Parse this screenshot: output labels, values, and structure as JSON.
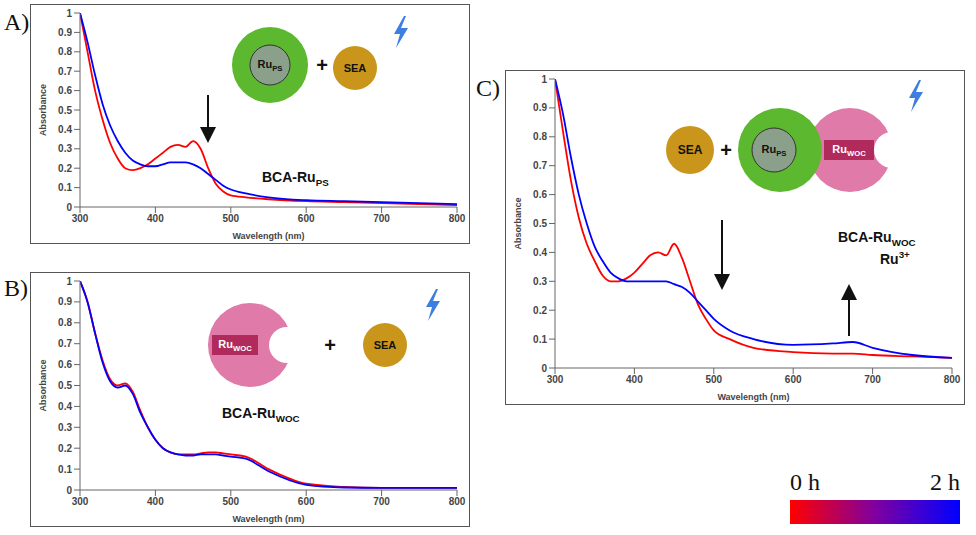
{
  "chart_data": [
    {
      "type": "line",
      "label": "A)",
      "x_label": "Wavelength (nm)",
      "y_label": "Absorbance",
      "xlim": [
        300,
        800
      ],
      "xticks": [
        300,
        400,
        500,
        600,
        700,
        800
      ],
      "ylim": [
        0,
        1
      ],
      "yticks": [
        0,
        0.1,
        0.2,
        0.3,
        0.4,
        0.5,
        0.6,
        0.7,
        0.8,
        0.9,
        1
      ],
      "x": [
        300,
        310,
        320,
        330,
        340,
        350,
        360,
        370,
        380,
        390,
        400,
        410,
        420,
        430,
        440,
        450,
        460,
        470,
        480,
        490,
        500,
        520,
        550,
        600,
        650,
        700,
        750,
        800
      ],
      "series": [
        {
          "name": "0 h",
          "color": "#ff0000",
          "values": [
            1.0,
            0.8,
            0.6,
            0.45,
            0.33,
            0.25,
            0.2,
            0.19,
            0.2,
            0.22,
            0.25,
            0.28,
            0.31,
            0.32,
            0.31,
            0.34,
            0.3,
            0.2,
            0.12,
            0.08,
            0.06,
            0.05,
            0.04,
            0.03,
            0.025,
            0.02,
            0.015,
            0.01
          ]
        },
        {
          "name": "2 h",
          "color": "#0000ff",
          "values": [
            1.0,
            0.85,
            0.68,
            0.53,
            0.42,
            0.34,
            0.28,
            0.24,
            0.22,
            0.21,
            0.21,
            0.22,
            0.23,
            0.23,
            0.23,
            0.22,
            0.2,
            0.17,
            0.14,
            0.11,
            0.09,
            0.07,
            0.05,
            0.035,
            0.03,
            0.025,
            0.02,
            0.015
          ]
        }
      ],
      "annotations": {
        "ps": {
          "text": "Ru",
          "sub": "PS"
        },
        "plus": {
          "text": "+"
        },
        "sea": {
          "text": "SEA"
        },
        "complex": {
          "text": "BCA-Ru",
          "sub": "PS"
        }
      }
    },
    {
      "type": "line",
      "label": "B)",
      "x_label": "Wavelength (nm)",
      "y_label": "Absorbance",
      "xlim": [
        300,
        800
      ],
      "xticks": [
        300,
        400,
        500,
        600,
        700,
        800
      ],
      "ylim": [
        0,
        1
      ],
      "yticks": [
        0,
        0.1,
        0.2,
        0.3,
        0.4,
        0.5,
        0.6,
        0.7,
        0.8,
        0.9,
        1
      ],
      "x": [
        300,
        310,
        320,
        330,
        340,
        350,
        360,
        370,
        380,
        390,
        400,
        410,
        420,
        430,
        440,
        450,
        460,
        470,
        480,
        490,
        500,
        520,
        550,
        600,
        650,
        700,
        750,
        800
      ],
      "series": [
        {
          "name": "0 h",
          "color": "#ff0000",
          "values": [
            1.0,
            0.9,
            0.75,
            0.62,
            0.53,
            0.5,
            0.51,
            0.47,
            0.38,
            0.3,
            0.24,
            0.2,
            0.18,
            0.17,
            0.17,
            0.17,
            0.175,
            0.18,
            0.18,
            0.175,
            0.17,
            0.16,
            0.1,
            0.03,
            0.015,
            0.01,
            0.01,
            0.01
          ]
        },
        {
          "name": "2 h",
          "color": "#0000ff",
          "values": [
            1.0,
            0.9,
            0.75,
            0.61,
            0.52,
            0.49,
            0.5,
            0.46,
            0.37,
            0.3,
            0.24,
            0.2,
            0.18,
            0.17,
            0.165,
            0.165,
            0.17,
            0.17,
            0.17,
            0.165,
            0.16,
            0.15,
            0.09,
            0.025,
            0.012,
            0.01,
            0.01,
            0.01
          ]
        }
      ],
      "annotations": {
        "woc": {
          "text": "Ru",
          "sub": "WOC"
        },
        "plus": {
          "text": "+"
        },
        "sea": {
          "text": "SEA"
        },
        "complex": {
          "text": "BCA-Ru",
          "sub": "WOC"
        }
      }
    },
    {
      "type": "line",
      "label": "C)",
      "x_label": "Wavelength (nm)",
      "y_label": "Absorbance",
      "xlim": [
        300,
        800
      ],
      "xticks": [
        300,
        400,
        500,
        600,
        700,
        800
      ],
      "ylim": [
        0,
        1
      ],
      "yticks": [
        0,
        0.1,
        0.2,
        0.3,
        0.4,
        0.5,
        0.6,
        0.7,
        0.8,
        0.9,
        1
      ],
      "x": [
        300,
        310,
        320,
        330,
        340,
        350,
        360,
        370,
        380,
        390,
        400,
        410,
        420,
        430,
        440,
        450,
        460,
        470,
        480,
        490,
        500,
        520,
        550,
        600,
        650,
        675,
        700,
        750,
        800
      ],
      "series": [
        {
          "name": "0 h",
          "color": "#ff0000",
          "values": [
            1.0,
            0.82,
            0.65,
            0.52,
            0.43,
            0.37,
            0.32,
            0.3,
            0.3,
            0.31,
            0.33,
            0.36,
            0.39,
            0.4,
            0.39,
            0.43,
            0.38,
            0.3,
            0.22,
            0.17,
            0.13,
            0.1,
            0.07,
            0.055,
            0.05,
            0.05,
            0.045,
            0.04,
            0.035
          ]
        },
        {
          "name": "2 h",
          "color": "#0000ff",
          "values": [
            1.0,
            0.88,
            0.73,
            0.6,
            0.5,
            0.42,
            0.37,
            0.33,
            0.31,
            0.3,
            0.3,
            0.3,
            0.3,
            0.3,
            0.3,
            0.29,
            0.28,
            0.26,
            0.23,
            0.2,
            0.17,
            0.13,
            0.1,
            0.08,
            0.085,
            0.09,
            0.07,
            0.045,
            0.035
          ]
        }
      ],
      "annotations": {
        "sea": {
          "text": "SEA"
        },
        "plus": {
          "text": "+"
        },
        "ps": {
          "text": "Ru",
          "sub": "PS"
        },
        "woc": {
          "text": "Ru",
          "sub": "WOC"
        },
        "complex": {
          "text": "BCA-Ru",
          "sub": "WOC"
        },
        "ion": {
          "text": "Ru",
          "sup": "3+"
        }
      }
    }
  ]
}
